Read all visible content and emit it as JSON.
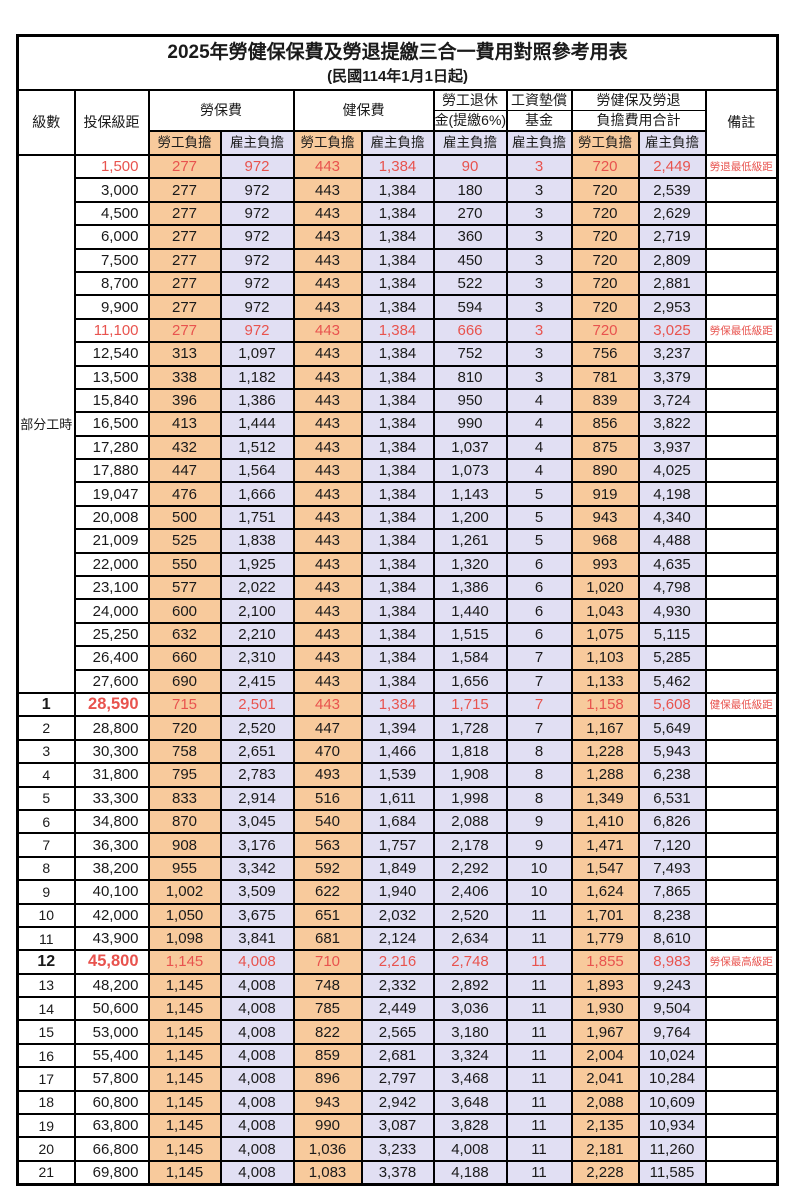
{
  "title": "2025年勞健保保費及勞退提繳三合一費用對照參考用表",
  "subtitle": "(民國114年1月1日起)",
  "colors": {
    "employee_bg": "#F8CA9C",
    "employer_bg": "#E1DFF3",
    "highlight_red": "#E8534E"
  },
  "header": {
    "level": "級數",
    "salary": "投保級距",
    "labor": "勞保費",
    "health": "健保費",
    "pension_line1": "勞工退休",
    "pension_line2": "金(提繳6%)",
    "fund_line1": "工資墊償",
    "fund_line2": "基金",
    "total_line1": "勞健保及勞退",
    "total_line2": "負擔費用合計",
    "note": "備註",
    "employee": "勞工負擔",
    "employer": "雇主負擔"
  },
  "part_time_label": "部分工時",
  "part_time_rowspan": 23,
  "rows": [
    {
      "level": "",
      "salary": "1,500",
      "labor_employee": "277",
      "labor_employer": "972",
      "health_employee": "443",
      "health_employer": "1,384",
      "pension_employer": "90",
      "fund_employer": "3",
      "total_employee": "720",
      "total_employer": "2,449",
      "note": "勞退最低級距",
      "red": true,
      "big": false
    },
    {
      "level": "",
      "salary": "3,000",
      "labor_employee": "277",
      "labor_employer": "972",
      "health_employee": "443",
      "health_employer": "1,384",
      "pension_employer": "180",
      "fund_employer": "3",
      "total_employee": "720",
      "total_employer": "2,539",
      "note": "",
      "red": false,
      "big": false
    },
    {
      "level": "",
      "salary": "4,500",
      "labor_employee": "277",
      "labor_employer": "972",
      "health_employee": "443",
      "health_employer": "1,384",
      "pension_employer": "270",
      "fund_employer": "3",
      "total_employee": "720",
      "total_employer": "2,629",
      "note": "",
      "red": false,
      "big": false
    },
    {
      "level": "",
      "salary": "6,000",
      "labor_employee": "277",
      "labor_employer": "972",
      "health_employee": "443",
      "health_employer": "1,384",
      "pension_employer": "360",
      "fund_employer": "3",
      "total_employee": "720",
      "total_employer": "2,719",
      "note": "",
      "red": false,
      "big": false
    },
    {
      "level": "",
      "salary": "7,500",
      "labor_employee": "277",
      "labor_employer": "972",
      "health_employee": "443",
      "health_employer": "1,384",
      "pension_employer": "450",
      "fund_employer": "3",
      "total_employee": "720",
      "total_employer": "2,809",
      "note": "",
      "red": false,
      "big": false
    },
    {
      "level": "",
      "salary": "8,700",
      "labor_employee": "277",
      "labor_employer": "972",
      "health_employee": "443",
      "health_employer": "1,384",
      "pension_employer": "522",
      "fund_employer": "3",
      "total_employee": "720",
      "total_employer": "2,881",
      "note": "",
      "red": false,
      "big": false
    },
    {
      "level": "",
      "salary": "9,900",
      "labor_employee": "277",
      "labor_employer": "972",
      "health_employee": "443",
      "health_employer": "1,384",
      "pension_employer": "594",
      "fund_employer": "3",
      "total_employee": "720",
      "total_employer": "2,953",
      "note": "",
      "red": false,
      "big": false
    },
    {
      "level": "",
      "salary": "11,100",
      "labor_employee": "277",
      "labor_employer": "972",
      "health_employee": "443",
      "health_employer": "1,384",
      "pension_employer": "666",
      "fund_employer": "3",
      "total_employee": "720",
      "total_employer": "3,025",
      "note": "勞保最低級距",
      "red": true,
      "big": false
    },
    {
      "level": "",
      "salary": "12,540",
      "labor_employee": "313",
      "labor_employer": "1,097",
      "health_employee": "443",
      "health_employer": "1,384",
      "pension_employer": "752",
      "fund_employer": "3",
      "total_employee": "756",
      "total_employer": "3,237",
      "note": "",
      "red": false,
      "big": false
    },
    {
      "level": "",
      "salary": "13,500",
      "labor_employee": "338",
      "labor_employer": "1,182",
      "health_employee": "443",
      "health_employer": "1,384",
      "pension_employer": "810",
      "fund_employer": "3",
      "total_employee": "781",
      "total_employer": "3,379",
      "note": "",
      "red": false,
      "big": false
    },
    {
      "level": "",
      "salary": "15,840",
      "labor_employee": "396",
      "labor_employer": "1,386",
      "health_employee": "443",
      "health_employer": "1,384",
      "pension_employer": "950",
      "fund_employer": "4",
      "total_employee": "839",
      "total_employer": "3,724",
      "note": "",
      "red": false,
      "big": false
    },
    {
      "level": "",
      "salary": "16,500",
      "labor_employee": "413",
      "labor_employer": "1,444",
      "health_employee": "443",
      "health_employer": "1,384",
      "pension_employer": "990",
      "fund_employer": "4",
      "total_employee": "856",
      "total_employer": "3,822",
      "note": "",
      "red": false,
      "big": false
    },
    {
      "level": "",
      "salary": "17,280",
      "labor_employee": "432",
      "labor_employer": "1,512",
      "health_employee": "443",
      "health_employer": "1,384",
      "pension_employer": "1,037",
      "fund_employer": "4",
      "total_employee": "875",
      "total_employer": "3,937",
      "note": "",
      "red": false,
      "big": false
    },
    {
      "level": "",
      "salary": "17,880",
      "labor_employee": "447",
      "labor_employer": "1,564",
      "health_employee": "443",
      "health_employer": "1,384",
      "pension_employer": "1,073",
      "fund_employer": "4",
      "total_employee": "890",
      "total_employer": "4,025",
      "note": "",
      "red": false,
      "big": false
    },
    {
      "level": "",
      "salary": "19,047",
      "labor_employee": "476",
      "labor_employer": "1,666",
      "health_employee": "443",
      "health_employer": "1,384",
      "pension_employer": "1,143",
      "fund_employer": "5",
      "total_employee": "919",
      "total_employer": "4,198",
      "note": "",
      "red": false,
      "big": false
    },
    {
      "level": "",
      "salary": "20,008",
      "labor_employee": "500",
      "labor_employer": "1,751",
      "health_employee": "443",
      "health_employer": "1,384",
      "pension_employer": "1,200",
      "fund_employer": "5",
      "total_employee": "943",
      "total_employer": "4,340",
      "note": "",
      "red": false,
      "big": false
    },
    {
      "level": "",
      "salary": "21,009",
      "labor_employee": "525",
      "labor_employer": "1,838",
      "health_employee": "443",
      "health_employer": "1,384",
      "pension_employer": "1,261",
      "fund_employer": "5",
      "total_employee": "968",
      "total_employer": "4,488",
      "note": "",
      "red": false,
      "big": false
    },
    {
      "level": "",
      "salary": "22,000",
      "labor_employee": "550",
      "labor_employer": "1,925",
      "health_employee": "443",
      "health_employer": "1,384",
      "pension_employer": "1,320",
      "fund_employer": "6",
      "total_employee": "993",
      "total_employer": "4,635",
      "note": "",
      "red": false,
      "big": false
    },
    {
      "level": "",
      "salary": "23,100",
      "labor_employee": "577",
      "labor_employer": "2,022",
      "health_employee": "443",
      "health_employer": "1,384",
      "pension_employer": "1,386",
      "fund_employer": "6",
      "total_employee": "1,020",
      "total_employer": "4,798",
      "note": "",
      "red": false,
      "big": false
    },
    {
      "level": "",
      "salary": "24,000",
      "labor_employee": "600",
      "labor_employer": "2,100",
      "health_employee": "443",
      "health_employer": "1,384",
      "pension_employer": "1,440",
      "fund_employer": "6",
      "total_employee": "1,043",
      "total_employer": "4,930",
      "note": "",
      "red": false,
      "big": false
    },
    {
      "level": "",
      "salary": "25,250",
      "labor_employee": "632",
      "labor_employer": "2,210",
      "health_employee": "443",
      "health_employer": "1,384",
      "pension_employer": "1,515",
      "fund_employer": "6",
      "total_employee": "1,075",
      "total_employer": "5,115",
      "note": "",
      "red": false,
      "big": false
    },
    {
      "level": "",
      "salary": "26,400",
      "labor_employee": "660",
      "labor_employer": "2,310",
      "health_employee": "443",
      "health_employer": "1,384",
      "pension_employer": "1,584",
      "fund_employer": "7",
      "total_employee": "1,103",
      "total_employer": "5,285",
      "note": "",
      "red": false,
      "big": false
    },
    {
      "level": "",
      "salary": "27,600",
      "labor_employee": "690",
      "labor_employer": "2,415",
      "health_employee": "443",
      "health_employer": "1,384",
      "pension_employer": "1,656",
      "fund_employer": "7",
      "total_employee": "1,133",
      "total_employer": "5,462",
      "note": "",
      "red": false,
      "big": false
    },
    {
      "level": "1",
      "salary": "28,590",
      "labor_employee": "715",
      "labor_employer": "2,501",
      "health_employee": "443",
      "health_employer": "1,384",
      "pension_employer": "1,715",
      "fund_employer": "7",
      "total_employee": "1,158",
      "total_employer": "5,608",
      "note": "健保最低級距",
      "red": true,
      "big": true
    },
    {
      "level": "2",
      "salary": "28,800",
      "labor_employee": "720",
      "labor_employer": "2,520",
      "health_employee": "447",
      "health_employer": "1,394",
      "pension_employer": "1,728",
      "fund_employer": "7",
      "total_employee": "1,167",
      "total_employer": "5,649",
      "note": "",
      "red": false,
      "big": false
    },
    {
      "level": "3",
      "salary": "30,300",
      "labor_employee": "758",
      "labor_employer": "2,651",
      "health_employee": "470",
      "health_employer": "1,466",
      "pension_employer": "1,818",
      "fund_employer": "8",
      "total_employee": "1,228",
      "total_employer": "5,943",
      "note": "",
      "red": false,
      "big": false
    },
    {
      "level": "4",
      "salary": "31,800",
      "labor_employee": "795",
      "labor_employer": "2,783",
      "health_employee": "493",
      "health_employer": "1,539",
      "pension_employer": "1,908",
      "fund_employer": "8",
      "total_employee": "1,288",
      "total_employer": "6,238",
      "note": "",
      "red": false,
      "big": false
    },
    {
      "level": "5",
      "salary": "33,300",
      "labor_employee": "833",
      "labor_employer": "2,914",
      "health_employee": "516",
      "health_employer": "1,611",
      "pension_employer": "1,998",
      "fund_employer": "8",
      "total_employee": "1,349",
      "total_employer": "6,531",
      "note": "",
      "red": false,
      "big": false
    },
    {
      "level": "6",
      "salary": "34,800",
      "labor_employee": "870",
      "labor_employer": "3,045",
      "health_employee": "540",
      "health_employer": "1,684",
      "pension_employer": "2,088",
      "fund_employer": "9",
      "total_employee": "1,410",
      "total_employer": "6,826",
      "note": "",
      "red": false,
      "big": false
    },
    {
      "level": "7",
      "salary": "36,300",
      "labor_employee": "908",
      "labor_employer": "3,176",
      "health_employee": "563",
      "health_employer": "1,757",
      "pension_employer": "2,178",
      "fund_employer": "9",
      "total_employee": "1,471",
      "total_employer": "7,120",
      "note": "",
      "red": false,
      "big": false
    },
    {
      "level": "8",
      "salary": "38,200",
      "labor_employee": "955",
      "labor_employer": "3,342",
      "health_employee": "592",
      "health_employer": "1,849",
      "pension_employer": "2,292",
      "fund_employer": "10",
      "total_employee": "1,547",
      "total_employer": "7,493",
      "note": "",
      "red": false,
      "big": false
    },
    {
      "level": "9",
      "salary": "40,100",
      "labor_employee": "1,002",
      "labor_employer": "3,509",
      "health_employee": "622",
      "health_employer": "1,940",
      "pension_employer": "2,406",
      "fund_employer": "10",
      "total_employee": "1,624",
      "total_employer": "7,865",
      "note": "",
      "red": false,
      "big": false
    },
    {
      "level": "10",
      "salary": "42,000",
      "labor_employee": "1,050",
      "labor_employer": "3,675",
      "health_employee": "651",
      "health_employer": "2,032",
      "pension_employer": "2,520",
      "fund_employer": "11",
      "total_employee": "1,701",
      "total_employer": "8,238",
      "note": "",
      "red": false,
      "big": false
    },
    {
      "level": "11",
      "salary": "43,900",
      "labor_employee": "1,098",
      "labor_employer": "3,841",
      "health_employee": "681",
      "health_employer": "2,124",
      "pension_employer": "2,634",
      "fund_employer": "11",
      "total_employee": "1,779",
      "total_employer": "8,610",
      "note": "",
      "red": false,
      "big": false
    },
    {
      "level": "12",
      "salary": "45,800",
      "labor_employee": "1,145",
      "labor_employer": "4,008",
      "health_employee": "710",
      "health_employer": "2,216",
      "pension_employer": "2,748",
      "fund_employer": "11",
      "total_employee": "1,855",
      "total_employer": "8,983",
      "note": "勞保最高級距",
      "red": true,
      "big": true
    },
    {
      "level": "13",
      "salary": "48,200",
      "labor_employee": "1,145",
      "labor_employer": "4,008",
      "health_employee": "748",
      "health_employer": "2,332",
      "pension_employer": "2,892",
      "fund_employer": "11",
      "total_employee": "1,893",
      "total_employer": "9,243",
      "note": "",
      "red": false,
      "big": false
    },
    {
      "level": "14",
      "salary": "50,600",
      "labor_employee": "1,145",
      "labor_employer": "4,008",
      "health_employee": "785",
      "health_employer": "2,449",
      "pension_employer": "3,036",
      "fund_employer": "11",
      "total_employee": "1,930",
      "total_employer": "9,504",
      "note": "",
      "red": false,
      "big": false
    },
    {
      "level": "15",
      "salary": "53,000",
      "labor_employee": "1,145",
      "labor_employer": "4,008",
      "health_employee": "822",
      "health_employer": "2,565",
      "pension_employer": "3,180",
      "fund_employer": "11",
      "total_employee": "1,967",
      "total_employer": "9,764",
      "note": "",
      "red": false,
      "big": false
    },
    {
      "level": "16",
      "salary": "55,400",
      "labor_employee": "1,145",
      "labor_employer": "4,008",
      "health_employee": "859",
      "health_employer": "2,681",
      "pension_employer": "3,324",
      "fund_employer": "11",
      "total_employee": "2,004",
      "total_employer": "10,024",
      "note": "",
      "red": false,
      "big": false
    },
    {
      "level": "17",
      "salary": "57,800",
      "labor_employee": "1,145",
      "labor_employer": "4,008",
      "health_employee": "896",
      "health_employer": "2,797",
      "pension_employer": "3,468",
      "fund_employer": "11",
      "total_employee": "2,041",
      "total_employer": "10,284",
      "note": "",
      "red": false,
      "big": false
    },
    {
      "level": "18",
      "salary": "60,800",
      "labor_employee": "1,145",
      "labor_employer": "4,008",
      "health_employee": "943",
      "health_employer": "2,942",
      "pension_employer": "3,648",
      "fund_employer": "11",
      "total_employee": "2,088",
      "total_employer": "10,609",
      "note": "",
      "red": false,
      "big": false
    },
    {
      "level": "19",
      "salary": "63,800",
      "labor_employee": "1,145",
      "labor_employer": "4,008",
      "health_employee": "990",
      "health_employer": "3,087",
      "pension_employer": "3,828",
      "fund_employer": "11",
      "total_employee": "2,135",
      "total_employer": "10,934",
      "note": "",
      "red": false,
      "big": false
    },
    {
      "level": "20",
      "salary": "66,800",
      "labor_employee": "1,145",
      "labor_employer": "4,008",
      "health_employee": "1,036",
      "health_employer": "3,233",
      "pension_employer": "4,008",
      "fund_employer": "11",
      "total_employee": "2,181",
      "total_employer": "11,260",
      "note": "",
      "red": false,
      "big": false
    },
    {
      "level": "21",
      "salary": "69,800",
      "labor_employee": "1,145",
      "labor_employer": "4,008",
      "health_employee": "1,083",
      "health_employer": "3,378",
      "pension_employer": "4,188",
      "fund_employer": "11",
      "total_employee": "2,228",
      "total_employer": "11,585",
      "note": "",
      "red": false,
      "big": false
    }
  ]
}
